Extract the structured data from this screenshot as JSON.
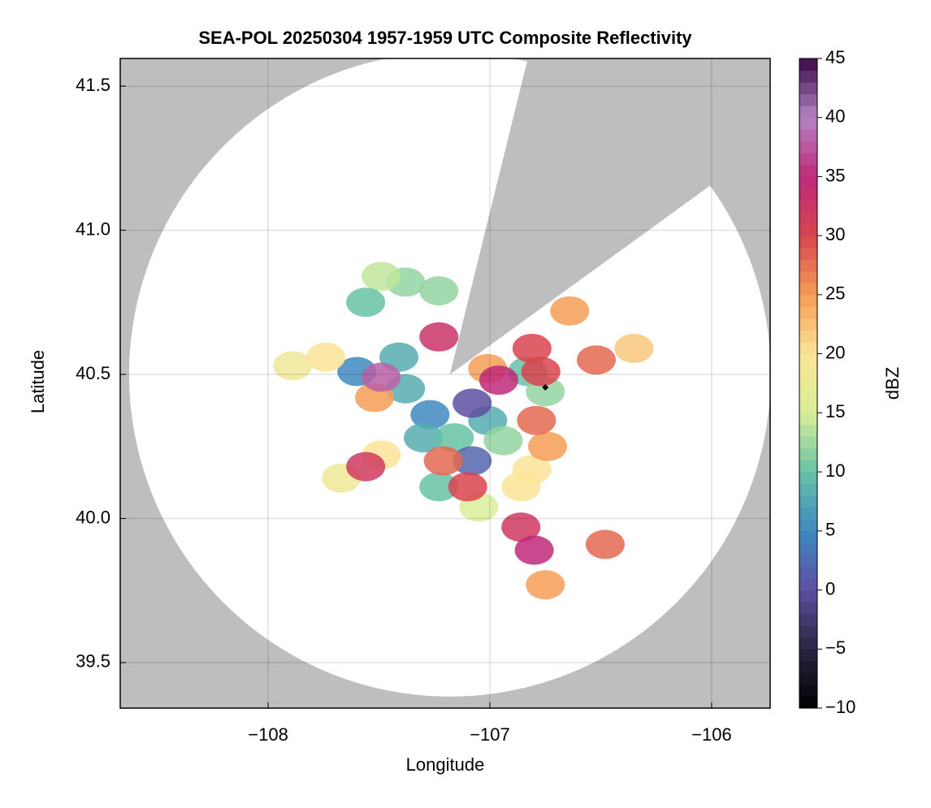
{
  "chart_data": {
    "type": "radar",
    "title": "SEA-POL 20250304 1957-1959 UTC Composite Reflectivity",
    "x_label": "Longitude",
    "y_label": "Latitude",
    "colorbar_label": "dBZ",
    "xlim": [
      -108.667,
      -105.736
    ],
    "xticks": [
      {
        "value": -108,
        "label": "−108"
      },
      {
        "value": -107,
        "label": "−107"
      },
      {
        "value": -106,
        "label": "−106"
      }
    ],
    "ylim": [
      39.342,
      41.596
    ],
    "yticks": [
      39.5,
      {
        "value": 40,
        "label": "40.0"
      },
      40.5,
      {
        "value": 41,
        "label": "41.0"
      },
      41.5
    ],
    "clim": [
      -10,
      45
    ],
    "cticks": [
      {
        "value": -10,
        "label": "−10"
      },
      {
        "value": -5,
        "label": "−5"
      },
      0,
      5,
      10,
      15,
      20,
      25,
      30,
      35,
      40,
      45
    ],
    "colormap": [
      "#000000",
      "#2a2540",
      "#5e4fa2",
      "#3f88c0",
      "#66c2a5",
      "#d8ee9a",
      "#fbe496",
      "#f59d56",
      "#d9444e",
      "#c0297a",
      "#b484c4",
      "#3b0a45"
    ],
    "grid": true,
    "background_color": "#bebebe",
    "coverage": {
      "center_lon": -107.18,
      "center_lat": 40.5,
      "radius_lon": 1.447,
      "radius_lat": 1.118,
      "blocked_lon": [
        -106.85,
        -106.06
      ],
      "blocked_lat": [
        41.53,
        41.125
      ]
    },
    "site_marker": {
      "lon": -106.75,
      "lat": 40.455
    },
    "cells": {
      "lon": [
        -107.38,
        -107.41,
        -107.6,
        -107.27,
        -107.3,
        -107.16,
        -107.01,
        -107.23,
        -106.94,
        -106.83,
        -106.75,
        -107.38,
        -107.49,
        -107.56,
        -107.23,
        -107.05,
        -107.08,
        -107.08,
        -107.67,
        -107.49,
        -106.81,
        -107.89,
        -107.74,
        -107.52,
        -107.01,
        -106.35,
        -106.74,
        -106.86,
        -106.64,
        -106.75,
        -107.21,
        -106.52,
        -106.48,
        -106.79,
        -106.81,
        -106.77,
        -107.56,
        -107.1,
        -106.86,
        -107.49,
        -107.23,
        -106.96,
        -106.8
      ],
      "lat": [
        40.45,
        40.56,
        40.51,
        40.36,
        40.28,
        40.28,
        40.34,
        40.11,
        40.27,
        40.51,
        40.44,
        40.82,
        40.84,
        40.75,
        40.79,
        40.04,
        40.2,
        40.4,
        40.14,
        40.22,
        40.17,
        40.53,
        40.56,
        40.42,
        40.52,
        40.59,
        40.25,
        40.11,
        40.72,
        39.77,
        40.2,
        40.55,
        39.91,
        40.34,
        40.59,
        40.51,
        40.18,
        40.11,
        39.97,
        40.49,
        40.63,
        40.48,
        39.89
      ],
      "dbz": [
        8,
        8,
        5,
        5,
        8,
        10,
        8,
        10,
        12,
        10,
        12,
        12,
        14,
        10,
        12,
        15,
        2,
        0,
        18,
        20,
        20,
        18,
        20,
        25,
        25,
        22,
        25,
        20,
        25,
        25,
        28,
        28,
        28,
        28,
        30,
        30,
        32,
        30,
        32,
        38,
        33,
        35,
        35
      ]
    }
  }
}
